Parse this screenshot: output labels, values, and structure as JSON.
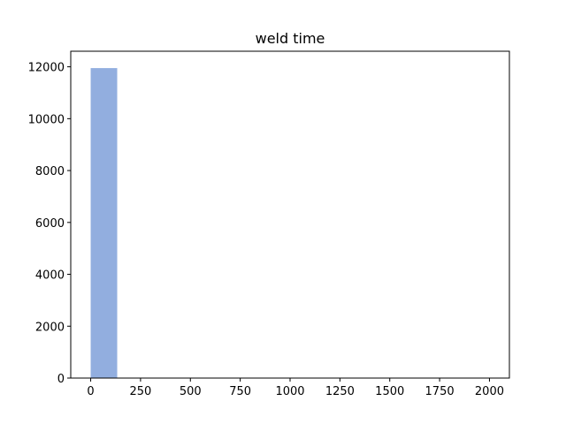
{
  "chart_data": {
    "type": "bar",
    "title": "weld time",
    "xlabel": "",
    "ylabel": "",
    "bar_color": "#92aedf",
    "bins": [
      {
        "x0": 0,
        "x1": 133,
        "value": 11950
      },
      {
        "x0": 133,
        "x1": 266,
        "value": 0
      },
      {
        "x0": 266,
        "x1": 399,
        "value": 0
      },
      {
        "x0": 399,
        "x1": 532,
        "value": 0
      },
      {
        "x0": 532,
        "x1": 665,
        "value": 0
      },
      {
        "x0": 665,
        "x1": 798,
        "value": 0
      },
      {
        "x0": 798,
        "x1": 931,
        "value": 0
      },
      {
        "x0": 931,
        "x1": 1064,
        "value": 0
      },
      {
        "x0": 1064,
        "x1": 1197,
        "value": 0
      },
      {
        "x0": 1197,
        "x1": 1330,
        "value": 0
      },
      {
        "x0": 1330,
        "x1": 1463,
        "value": 0
      },
      {
        "x0": 1463,
        "x1": 1596,
        "value": 0
      },
      {
        "x0": 1596,
        "x1": 1729,
        "value": 0
      },
      {
        "x0": 1729,
        "x1": 1862,
        "value": 0
      },
      {
        "x0": 1862,
        "x1": 1995,
        "value": 0
      }
    ],
    "xlim": [
      -100,
      2100
    ],
    "ylim": [
      0,
      12600
    ],
    "xticks": [
      0,
      250,
      500,
      750,
      1000,
      1250,
      1500,
      1750,
      2000
    ],
    "xtick_labels": [
      "0",
      "250",
      "500",
      "750",
      "1000",
      "1250",
      "1500",
      "1750",
      "2000"
    ],
    "yticks": [
      0,
      2000,
      4000,
      6000,
      8000,
      10000,
      12000
    ],
    "ytick_labels": [
      "0",
      "2000",
      "4000",
      "6000",
      "8000",
      "10000",
      "12000"
    ],
    "grid": false,
    "legend": "none"
  }
}
